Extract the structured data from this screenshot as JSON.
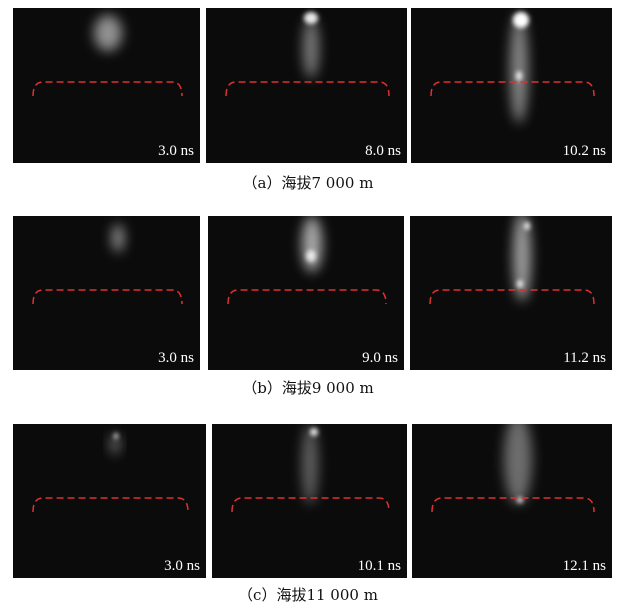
{
  "figure": {
    "rows": [
      {
        "caption": "（a）海拔7 000 m",
        "panels": [
          {
            "time": "3.0 ns"
          },
          {
            "time": "8.0 ns"
          },
          {
            "time": "10.2 ns"
          }
        ]
      },
      {
        "caption": "（b）海拔9 000 m",
        "panels": [
          {
            "time": "3.0 ns"
          },
          {
            "time": "9.0 ns"
          },
          {
            "time": "11.2 ns"
          }
        ]
      },
      {
        "caption": "（c）海拔11 000 m",
        "panels": [
          {
            "time": "3.0 ns"
          },
          {
            "time": "10.1 ns"
          },
          {
            "time": "12.1 ns"
          }
        ]
      }
    ]
  }
}
